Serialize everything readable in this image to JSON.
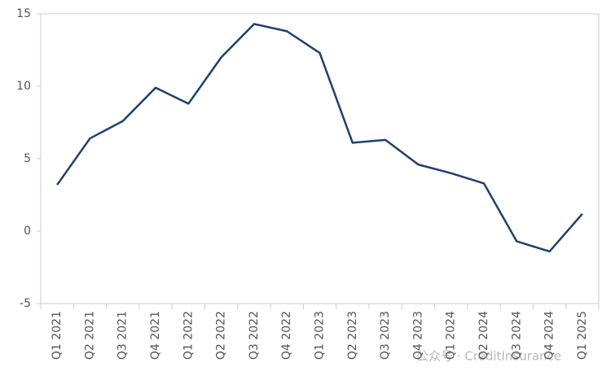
{
  "chart_data": {
    "type": "line",
    "categories": [
      "Q1 2021",
      "Q2 2021",
      "Q3 2021",
      "Q4 2021",
      "Q1 2022",
      "Q2 2022",
      "Q3 2022",
      "Q4 2022",
      "Q1 2023",
      "Q2 2023",
      "Q3 2023",
      "Q4 2023",
      "Q1 2024",
      "Q2 2024",
      "Q3 2024",
      "Q4 2024",
      "Q1 2025"
    ],
    "series": [
      {
        "color": "#1f3f6e",
        "values": [
          3.2,
          6.4,
          7.6,
          9.9,
          8.8,
          12.0,
          14.3,
          13.8,
          12.3,
          6.1,
          6.3,
          4.6,
          4.0,
          3.3,
          -0.7,
          -1.4,
          1.2
        ]
      }
    ],
    "ylim": [
      -5,
      15
    ],
    "yticks": [
      -5,
      0,
      5,
      10,
      15
    ],
    "grid": false,
    "watermark": "公众号 · CreditInsurance"
  }
}
